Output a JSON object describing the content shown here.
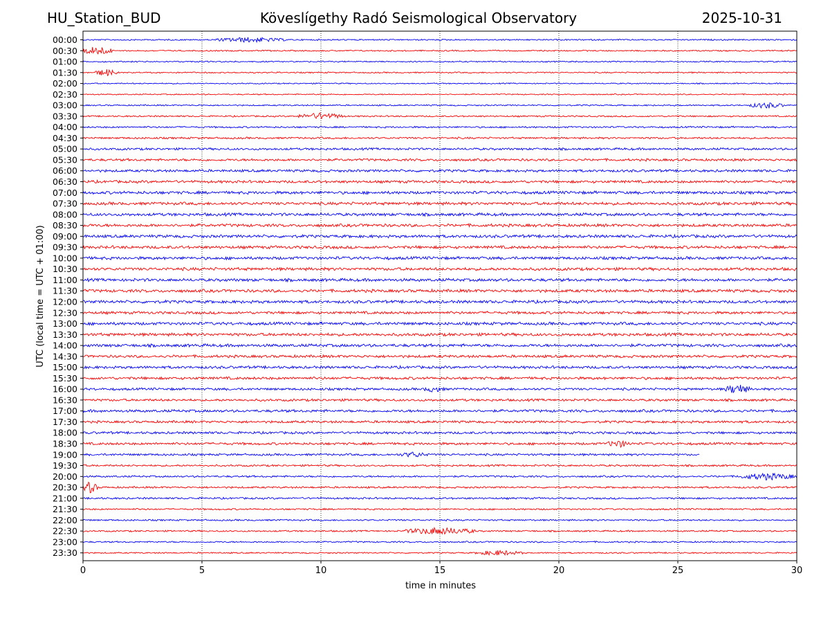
{
  "header": {
    "station": "HU_Station_BUD",
    "observatory": "Köveslígethy Radó Seismological Observatory",
    "date": "2025-10-31"
  },
  "chart_data": {
    "type": "line",
    "title": "Köveslígethy Radó Seismological Observatory",
    "xlabel": "time in minutes",
    "ylabel": "UTC (local time = UTC + 01:00)",
    "xlim": [
      0,
      30
    ],
    "xticks": [
      "0",
      "5",
      "10",
      "15",
      "20",
      "25",
      "30"
    ],
    "xtick_values": [
      0,
      5,
      10,
      15,
      20,
      25,
      30
    ],
    "grid": "vertical dotted lines at x ticks",
    "series_colors": [
      "#0000ff",
      "#ff0000"
    ],
    "rows": [
      "00:00",
      "00:30",
      "01:00",
      "01:30",
      "02:00",
      "02:30",
      "03:00",
      "03:30",
      "04:00",
      "04:30",
      "05:00",
      "05:30",
      "06:00",
      "06:30",
      "07:00",
      "07:30",
      "08:00",
      "08:30",
      "09:00",
      "09:30",
      "10:00",
      "10:30",
      "11:00",
      "11:30",
      "12:00",
      "12:30",
      "13:00",
      "13:30",
      "14:00",
      "14:30",
      "15:00",
      "15:30",
      "16:00",
      "16:30",
      "17:00",
      "17:30",
      "18:00",
      "18:30",
      "19:00",
      "19:30",
      "20:00",
      "20:30",
      "21:00",
      "21:30",
      "22:00",
      "22:30",
      "23:00",
      "23:30"
    ],
    "noise_level": [
      0.25,
      0.25,
      0.25,
      0.25,
      0.22,
      0.22,
      0.25,
      0.28,
      0.32,
      0.35,
      0.42,
      0.45,
      0.48,
      0.5,
      0.55,
      0.55,
      0.55,
      0.55,
      0.55,
      0.55,
      0.55,
      0.55,
      0.55,
      0.55,
      0.55,
      0.5,
      0.55,
      0.55,
      0.55,
      0.5,
      0.5,
      0.5,
      0.45,
      0.45,
      0.5,
      0.45,
      0.45,
      0.45,
      0.4,
      0.35,
      0.35,
      0.35,
      0.35,
      0.3,
      0.3,
      0.3,
      0.28,
      0.25
    ],
    "record_end_minutes": {
      "19:00": 25.9
    },
    "events": [
      {
        "row": "00:00",
        "start_min": 5.5,
        "end_min": 8.5,
        "amplitude": 1.2
      },
      {
        "row": "00:30",
        "start_min": 0.0,
        "end_min": 1.2,
        "amplitude": 2.2
      },
      {
        "row": "01:30",
        "start_min": 0.5,
        "end_min": 1.4,
        "amplitude": 1.6
      },
      {
        "row": "03:00",
        "start_min": 28.0,
        "end_min": 29.5,
        "amplitude": 1.4
      },
      {
        "row": "03:30",
        "start_min": 9.0,
        "end_min": 11.0,
        "amplitude": 1.5
      },
      {
        "row": "16:00",
        "start_min": 27.0,
        "end_min": 28.0,
        "amplitude": 2.4
      },
      {
        "row": "16:00",
        "start_min": 14.3,
        "end_min": 15.2,
        "amplitude": 1.4
      },
      {
        "row": "18:30",
        "start_min": 22.0,
        "end_min": 23.0,
        "amplitude": 1.7
      },
      {
        "row": "19:00",
        "start_min": 13.3,
        "end_min": 14.5,
        "amplitude": 1.3
      },
      {
        "row": "20:00",
        "start_min": 27.5,
        "end_min": 30.0,
        "amplitude": 1.6
      },
      {
        "row": "20:30",
        "start_min": 0.0,
        "end_min": 0.6,
        "amplitude": 2.6
      },
      {
        "row": "22:30",
        "start_min": 13.5,
        "end_min": 16.5,
        "amplitude": 1.7
      },
      {
        "row": "23:30",
        "start_min": 16.5,
        "end_min": 18.5,
        "amplitude": 1.2
      }
    ]
  }
}
